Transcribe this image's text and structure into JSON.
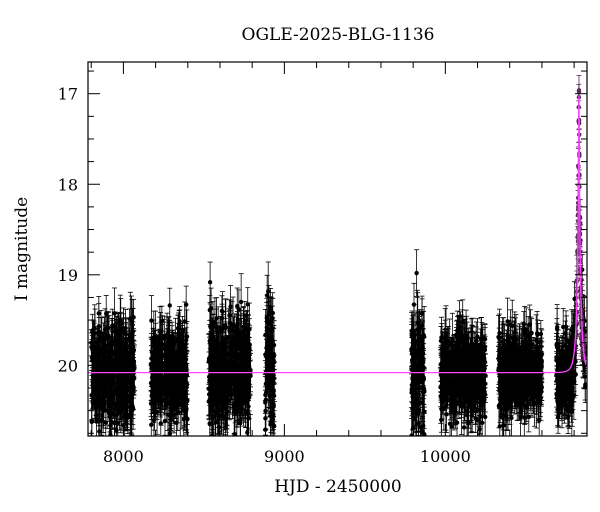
{
  "chart_data": {
    "type": "scatter",
    "title": "OGLE-2025-BLG-1136",
    "xlabel": "HJD - 2450000",
    "ylabel": "I magnitude",
    "xlim": [
      7780,
      10880
    ],
    "ylim": [
      20.78,
      16.65
    ],
    "y_inverted": true,
    "grid": false,
    "x_ticks": [
      8000,
      9000,
      10000
    ],
    "x_tick_labels": [
      "8000",
      "9000",
      "10000"
    ],
    "y_ticks": [
      17,
      18,
      19,
      20
    ],
    "y_tick_labels": [
      "17",
      "18",
      "19",
      "20"
    ],
    "colors": {
      "points": "#000000",
      "model": "#ff44ff",
      "peak_points": "#5a2a5a"
    },
    "series": [
      {
        "kind": "photometry",
        "seasons": [
          {
            "x_range": [
              7800,
              8070
            ],
            "base_mag": 20.07,
            "scatter": 0.27,
            "err": 0.23
          },
          {
            "x_range": [
              8170,
              8400
            ],
            "base_mag": 20.07,
            "scatter": 0.27,
            "err": 0.23
          },
          {
            "x_range": [
              8530,
              8790
            ],
            "base_mag": 20.07,
            "scatter": 0.3,
            "err": 0.25
          },
          {
            "x_range": [
              8880,
              8940
            ],
            "base_mag": 20.07,
            "scatter": 0.35,
            "err": 0.25
          },
          {
            "x_range": [
              9790,
              9870
            ],
            "base_mag": 20.07,
            "scatter": 0.35,
            "err": 0.28
          },
          {
            "x_range": [
              9970,
              10250
            ],
            "base_mag": 20.07,
            "scatter": 0.22,
            "err": 0.25
          },
          {
            "x_range": [
              10330,
              10600
            ],
            "base_mag": 20.07,
            "scatter": 0.2,
            "err": 0.22
          },
          {
            "x_range": [
              10690,
              10870
            ],
            "base_mag": 20.07,
            "scatter": 0.22,
            "err": 0.22
          }
        ]
      },
      {
        "kind": "model",
        "baseline_mag": 20.08,
        "peak_mag": 17.02,
        "t0": 10830,
        "tE": 25
      }
    ]
  }
}
